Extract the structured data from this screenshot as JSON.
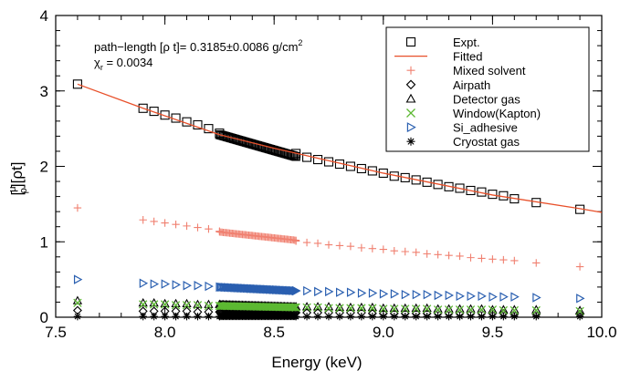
{
  "chart_data": {
    "type": "scatter",
    "xlabel": "Energy (keV)",
    "ylabel_parts": {
      "open": "[",
      "mu": "μ",
      "rho": "ρ",
      "close": "][ρt]"
    },
    "xlim": [
      7.5,
      10.0
    ],
    "ylim": [
      0,
      4
    ],
    "xticks": [
      7.5,
      8.0,
      8.5,
      9.0,
      9.5,
      10.0
    ],
    "xtick_labels": [
      "7.5",
      "8.0",
      "8.5",
      "9.0",
      "9.5",
      "10.0"
    ],
    "yticks": [
      0,
      1,
      2,
      3,
      4
    ],
    "ytick_labels": [
      "0",
      "1",
      "2",
      "3",
      "4"
    ],
    "grid": false,
    "legend_position": "top-right",
    "annotations": [
      {
        "id": "pathlength",
        "text": "path−length [ρ t]= 0.3185±0.0086 g/cm",
        "superscript": "2"
      },
      {
        "id": "chi",
        "symbol": "χ",
        "subscript": "r",
        "text": " = 0.0034"
      }
    ],
    "fitted_line": {
      "name": "Fitted",
      "color": "#e8502a",
      "x": [
        7.6,
        7.9,
        8.25,
        8.5,
        9.0,
        9.5,
        9.9,
        10.0
      ],
      "y": [
        3.09,
        2.77,
        2.42,
        2.24,
        1.91,
        1.62,
        1.44,
        1.39
      ]
    },
    "series": [
      {
        "name": "Expt.",
        "marker": "square",
        "color": "#000000",
        "dense_range": [
          8.25,
          8.6
        ],
        "x": [
          7.6,
          7.9,
          7.95,
          8.0,
          8.05,
          8.1,
          8.15,
          8.2,
          8.25,
          8.6,
          8.65,
          8.7,
          8.75,
          8.8,
          8.85,
          8.9,
          8.95,
          9.0,
          9.05,
          9.1,
          9.15,
          9.2,
          9.25,
          9.3,
          9.35,
          9.4,
          9.45,
          9.5,
          9.55,
          9.6,
          9.7,
          9.9
        ],
        "y_start": 2.42,
        "y_end": 2.13,
        "y": [
          3.09,
          2.77,
          2.73,
          2.68,
          2.64,
          2.59,
          2.55,
          2.5,
          2.44,
          2.17,
          2.12,
          2.09,
          2.06,
          2.03,
          2.0,
          1.97,
          1.94,
          1.91,
          1.87,
          1.85,
          1.82,
          1.79,
          1.76,
          1.73,
          1.71,
          1.68,
          1.66,
          1.63,
          1.61,
          1.57,
          1.52,
          1.43
        ]
      },
      {
        "name": "Mixed solvent",
        "marker": "plus",
        "color": "#f08070",
        "dense_range": [
          8.25,
          8.6
        ],
        "x": [
          7.6,
          7.9,
          7.95,
          8.0,
          8.05,
          8.1,
          8.15,
          8.2,
          8.25,
          8.6,
          8.65,
          8.7,
          8.75,
          8.8,
          8.85,
          8.9,
          8.95,
          9.0,
          9.05,
          9.1,
          9.15,
          9.2,
          9.25,
          9.3,
          9.35,
          9.4,
          9.45,
          9.5,
          9.55,
          9.6,
          9.7,
          9.9
        ],
        "y_start": 1.13,
        "y_end": 1.02,
        "y": [
          1.45,
          1.29,
          1.27,
          1.25,
          1.23,
          1.21,
          1.19,
          1.17,
          1.14,
          1.01,
          0.99,
          0.98,
          0.96,
          0.95,
          0.94,
          0.92,
          0.91,
          0.9,
          0.88,
          0.87,
          0.86,
          0.84,
          0.83,
          0.82,
          0.81,
          0.79,
          0.78,
          0.77,
          0.76,
          0.75,
          0.72,
          0.67
        ]
      },
      {
        "name": "Airpath",
        "marker": "diamond",
        "color": "#000000",
        "dense_range": [
          8.25,
          8.6
        ],
        "x": [
          7.6,
          7.9,
          7.95,
          8.0,
          8.05,
          8.1,
          8.15,
          8.2,
          8.25,
          8.6,
          8.65,
          8.7,
          8.75,
          8.8,
          8.85,
          8.9,
          8.95,
          9.0,
          9.05,
          9.1,
          9.15,
          9.2,
          9.25,
          9.3,
          9.35,
          9.4,
          9.45,
          9.5,
          9.55,
          9.6,
          9.7,
          9.9
        ],
        "y_start": 0.07,
        "y_end": 0.06,
        "y": [
          0.09,
          0.08,
          0.08,
          0.08,
          0.08,
          0.08,
          0.07,
          0.07,
          0.07,
          0.06,
          0.06,
          0.06,
          0.06,
          0.06,
          0.06,
          0.06,
          0.05,
          0.05,
          0.05,
          0.05,
          0.05,
          0.05,
          0.05,
          0.05,
          0.05,
          0.05,
          0.05,
          0.05,
          0.05,
          0.04,
          0.04,
          0.04
        ]
      },
      {
        "name": "Detector gas",
        "marker": "triangle",
        "color": "#000000",
        "dense_range": [
          8.25,
          8.6
        ],
        "x": [
          7.6,
          7.9,
          7.95,
          8.0,
          8.05,
          8.1,
          8.15,
          8.2,
          8.25,
          8.6,
          8.65,
          8.7,
          8.75,
          8.8,
          8.85,
          8.9,
          8.95,
          9.0,
          9.05,
          9.1,
          9.15,
          9.2,
          9.25,
          9.3,
          9.35,
          9.4,
          9.45,
          9.5,
          9.55,
          9.6,
          9.7,
          9.9
        ],
        "y_start": 0.17,
        "y_end": 0.14,
        "y": [
          0.22,
          0.19,
          0.19,
          0.18,
          0.18,
          0.18,
          0.17,
          0.17,
          0.17,
          0.14,
          0.14,
          0.14,
          0.14,
          0.13,
          0.13,
          0.13,
          0.13,
          0.12,
          0.12,
          0.12,
          0.12,
          0.12,
          0.11,
          0.11,
          0.11,
          0.11,
          0.11,
          0.1,
          0.1,
          0.1,
          0.1,
          0.09
        ]
      },
      {
        "name": "Window(Kapton)",
        "marker": "cross",
        "color": "#5cb832",
        "dense_range": [
          8.25,
          8.6
        ],
        "x": [
          7.6,
          7.9,
          7.95,
          8.0,
          8.05,
          8.1,
          8.15,
          8.2,
          8.25,
          8.6,
          8.65,
          8.7,
          8.75,
          8.8,
          8.85,
          8.9,
          8.95,
          9.0,
          9.05,
          9.1,
          9.15,
          9.2,
          9.25,
          9.3,
          9.35,
          9.4,
          9.45,
          9.5,
          9.55,
          9.6,
          9.7,
          9.9
        ],
        "y_start": 0.15,
        "y_end": 0.13,
        "y": [
          0.19,
          0.17,
          0.17,
          0.17,
          0.16,
          0.16,
          0.16,
          0.15,
          0.15,
          0.13,
          0.13,
          0.13,
          0.12,
          0.12,
          0.12,
          0.12,
          0.12,
          0.11,
          0.11,
          0.11,
          0.11,
          0.11,
          0.1,
          0.1,
          0.1,
          0.1,
          0.1,
          0.1,
          0.09,
          0.09,
          0.09,
          0.08
        ]
      },
      {
        "name": "Si_adhesive",
        "marker": "triangle-right",
        "color": "#2a5fb0",
        "dense_range": [
          8.25,
          8.6
        ],
        "x": [
          7.6,
          7.9,
          7.95,
          8.0,
          8.05,
          8.1,
          8.15,
          8.2,
          8.25,
          8.6,
          8.65,
          8.7,
          8.75,
          8.8,
          8.85,
          8.9,
          8.95,
          9.0,
          9.05,
          9.1,
          9.15,
          9.2,
          9.25,
          9.3,
          9.35,
          9.4,
          9.45,
          9.5,
          9.55,
          9.6,
          9.7,
          9.9
        ],
        "y_start": 0.4,
        "y_end": 0.35,
        "y": [
          0.5,
          0.45,
          0.44,
          0.44,
          0.43,
          0.42,
          0.42,
          0.41,
          0.4,
          0.35,
          0.35,
          0.34,
          0.34,
          0.33,
          0.33,
          0.32,
          0.32,
          0.31,
          0.31,
          0.3,
          0.3,
          0.3,
          0.29,
          0.29,
          0.28,
          0.28,
          0.28,
          0.27,
          0.27,
          0.27,
          0.26,
          0.25
        ]
      },
      {
        "name": "Cryostat gas",
        "marker": "asterisk",
        "color": "#000000",
        "dense_range": [
          8.25,
          8.6
        ],
        "x": [
          7.6,
          7.9,
          7.95,
          8.0,
          8.05,
          8.1,
          8.15,
          8.2,
          8.25,
          8.6,
          8.65,
          8.7,
          8.75,
          8.8,
          8.85,
          8.9,
          8.95,
          9.0,
          9.05,
          9.1,
          9.15,
          9.2,
          9.25,
          9.3,
          9.35,
          9.4,
          9.45,
          9.5,
          9.55,
          9.6,
          9.7,
          9.9
        ],
        "y_start": 0.01,
        "y_end": 0.01,
        "y": [
          0.01,
          0.01,
          0.01,
          0.01,
          0.01,
          0.01,
          0.01,
          0.01,
          0.01,
          0.01,
          0.01,
          0.01,
          0.01,
          0.01,
          0.01,
          0.01,
          0.01,
          0.01,
          0.01,
          0.01,
          0.01,
          0.01,
          0.01,
          0.01,
          0.01,
          0.01,
          0.01,
          0.01,
          0.01,
          0.01,
          0.01,
          0.01
        ]
      }
    ],
    "legend": [
      {
        "label": "Expt.",
        "marker": "square",
        "color": "#000000"
      },
      {
        "label": "Fitted",
        "marker": "line",
        "color": "#e8502a"
      },
      {
        "label": "Mixed solvent",
        "marker": "plus",
        "color": "#f08070"
      },
      {
        "label": "Airpath",
        "marker": "diamond",
        "color": "#000000"
      },
      {
        "label": "Detector gas",
        "marker": "triangle",
        "color": "#000000"
      },
      {
        "label": "Window(Kapton)",
        "marker": "cross",
        "color": "#5cb832"
      },
      {
        "label": "Si_adhesive",
        "marker": "triangle-right",
        "color": "#2a5fb0"
      },
      {
        "label": "Cryostat gas",
        "marker": "asterisk",
        "color": "#000000"
      }
    ]
  }
}
